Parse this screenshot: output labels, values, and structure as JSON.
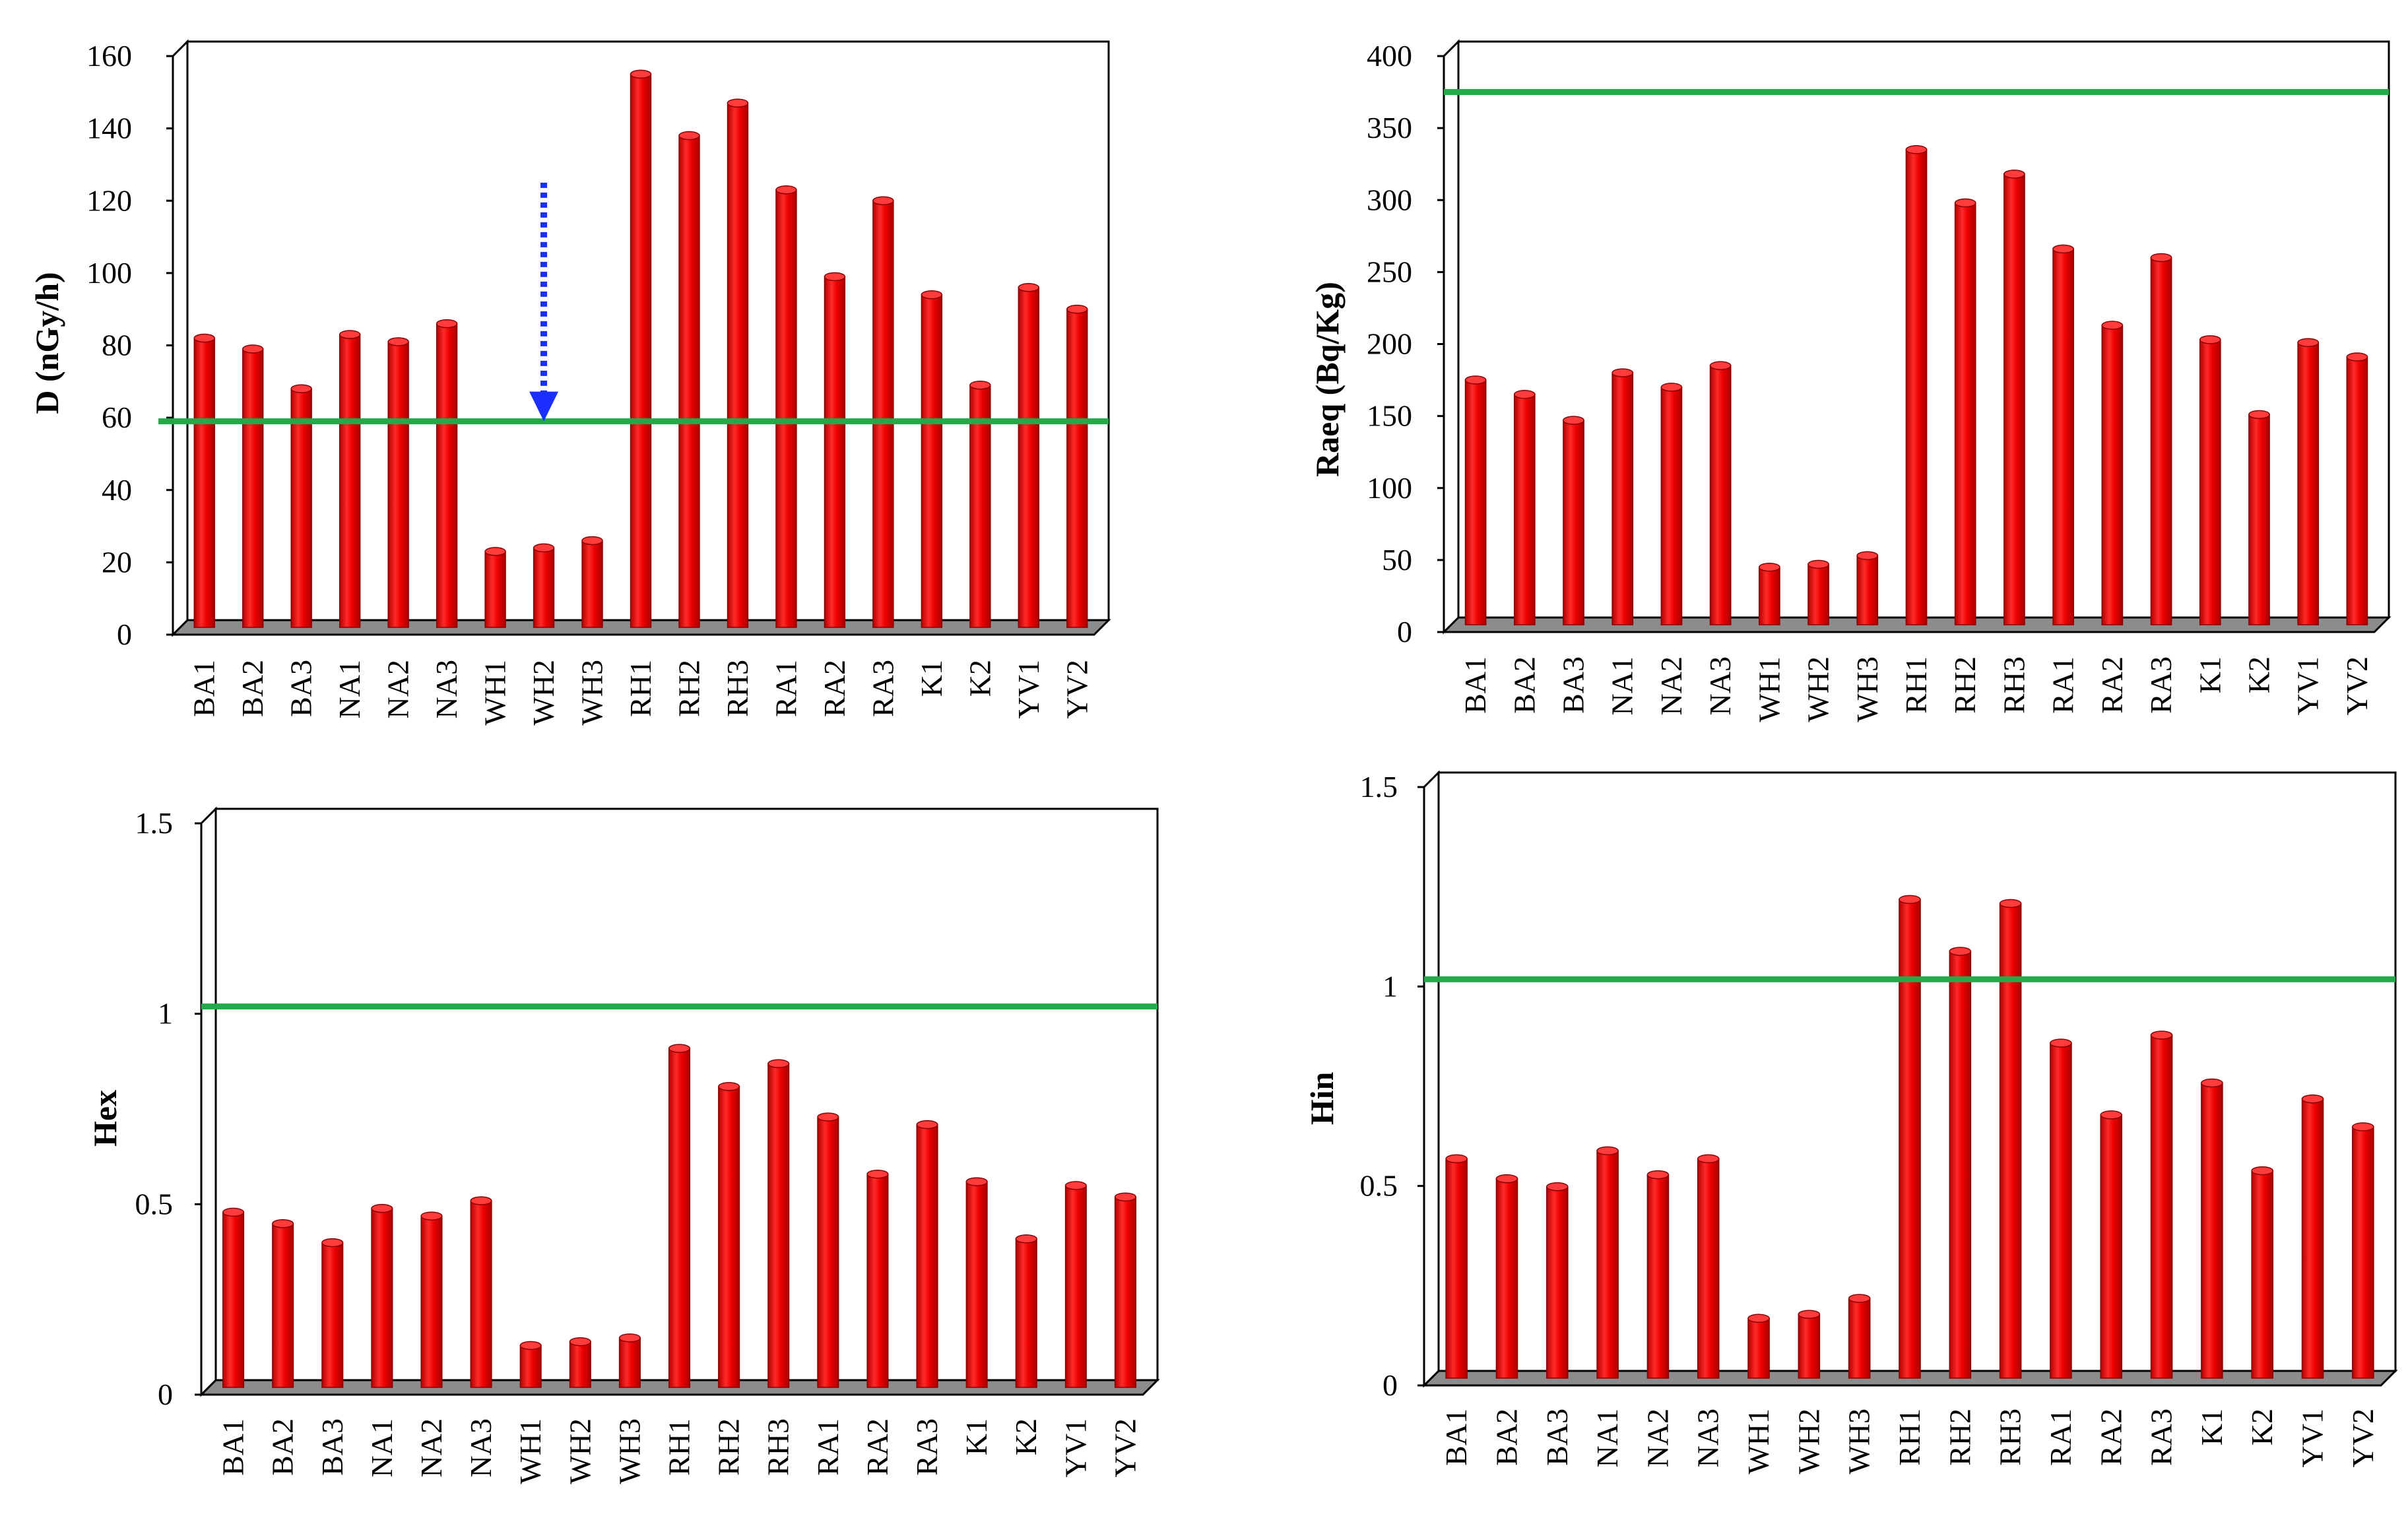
{
  "colors": {
    "bar": "#ee0000",
    "bar_dark": "#b00000",
    "bar_light": "#ff4a4a",
    "reference_line": "#22aa4a",
    "floor": "#8c8c8c",
    "arrow": "#1a2eff"
  },
  "chart_data": [
    {
      "id": "dose",
      "type": "bar",
      "title": "",
      "xlabel": "",
      "ylabel": "D (nGy/h)",
      "categories": [
        "BA1",
        "BA2",
        "BA3",
        "NA1",
        "NA2",
        "NA3",
        "WH1",
        "WH2",
        "WH3",
        "RH1",
        "RH2",
        "RH3",
        "RA1",
        "RA2",
        "RA3",
        "K1",
        "K2",
        "YV1",
        "YV2"
      ],
      "values": [
        80,
        77,
        66,
        81,
        79,
        84,
        21,
        22,
        24,
        153,
        136,
        145,
        121,
        97,
        118,
        92,
        67,
        94,
        88
      ],
      "ylim": [
        0,
        160
      ],
      "yticks": [
        "0",
        "20",
        "40",
        "60",
        "80",
        "100",
        "120",
        "140",
        "160"
      ],
      "reference_line": 57,
      "annotation": {
        "type": "arrow",
        "at_category": "WH2",
        "from_value": 125,
        "to_value": 57
      }
    },
    {
      "id": "raeq",
      "type": "bar",
      "title": "",
      "xlabel": "",
      "ylabel": "Raeq (Bq/Kg)",
      "categories": [
        "BA1",
        "BA2",
        "BA3",
        "NA1",
        "NA2",
        "NA3",
        "WH1",
        "WH2",
        "WH3",
        "RH1",
        "RH2",
        "RH3",
        "RA1",
        "RA2",
        "RA3",
        "K1",
        "K2",
        "YV1",
        "YV2"
      ],
      "values": [
        170,
        160,
        142,
        175,
        165,
        180,
        40,
        42,
        48,
        330,
        293,
        313,
        261,
        208,
        255,
        198,
        146,
        196,
        186
      ],
      "ylim": [
        0,
        400
      ],
      "yticks": [
        "0",
        "50",
        "100",
        "150",
        "200",
        "250",
        "300",
        "350",
        "400"
      ],
      "reference_line": 370
    },
    {
      "id": "hex",
      "type": "bar",
      "title": "",
      "xlabel": "",
      "ylabel": "Hex",
      "categories": [
        "BA1",
        "BA2",
        "BA3",
        "NA1",
        "NA2",
        "NA3",
        "WH1",
        "WH2",
        "WH3",
        "RH1",
        "RH2",
        "RH3",
        "RA1",
        "RA2",
        "RA3",
        "K1",
        "K2",
        "YV1",
        "YV2"
      ],
      "values": [
        0.46,
        0.43,
        0.38,
        0.47,
        0.45,
        0.49,
        0.11,
        0.12,
        0.13,
        0.89,
        0.79,
        0.85,
        0.71,
        0.56,
        0.69,
        0.54,
        0.39,
        0.53,
        0.5
      ],
      "ylim": [
        0,
        1.5
      ],
      "yticks": [
        "0",
        "0.5",
        "1",
        "1.5"
      ],
      "reference_line": 1
    },
    {
      "id": "hin",
      "type": "bar",
      "title": "",
      "xlabel": "",
      "ylabel": "Hin",
      "categories": [
        "BA1",
        "BA2",
        "BA3",
        "NA1",
        "NA2",
        "NA3",
        "WH1",
        "WH2",
        "WH3",
        "RH1",
        "RH2",
        "RH3",
        "RA1",
        "RA2",
        "RA3",
        "K1",
        "K2",
        "YV1",
        "YV2"
      ],
      "values": [
        0.55,
        0.5,
        0.48,
        0.57,
        0.51,
        0.55,
        0.15,
        0.16,
        0.2,
        1.2,
        1.07,
        1.19,
        0.84,
        0.66,
        0.86,
        0.74,
        0.52,
        0.7,
        0.63
      ],
      "ylim": [
        0,
        1.5
      ],
      "yticks": [
        "0",
        "0.5",
        "1",
        "1.5"
      ],
      "reference_line": 1
    }
  ]
}
